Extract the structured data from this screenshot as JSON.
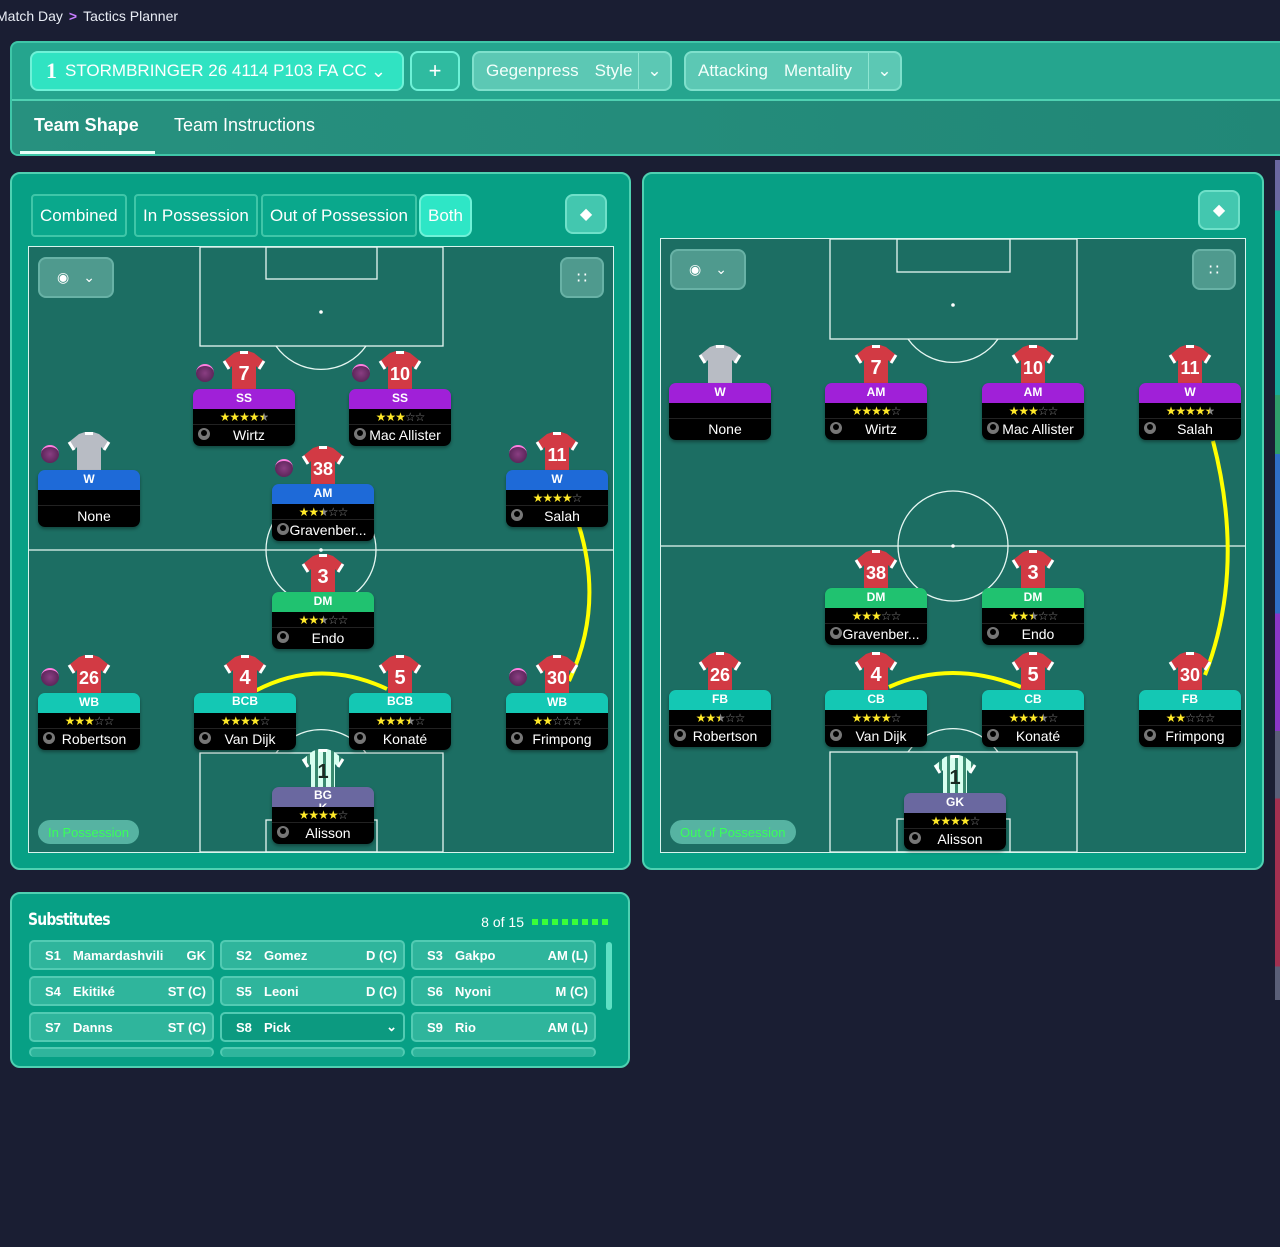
{
  "breadcrumb": {
    "items": [
      "Match Day",
      "Tactics Planner"
    ],
    "separator": ">"
  },
  "header": {
    "tactic": {
      "slot": "1",
      "name": "STORMBRINGER 26 4114 P103 FA CC"
    },
    "add_label": "+",
    "style": {
      "value": "Gegenpress",
      "label": "Style"
    },
    "mentality": {
      "value": "Attacking",
      "label": "Mentality"
    },
    "tabs": [
      {
        "label": "Team Shape",
        "active": true
      },
      {
        "label": "Team Instructions",
        "active": false
      }
    ]
  },
  "view_modes": {
    "options": [
      "Combined",
      "In Possession",
      "Out of Possession",
      "Both"
    ],
    "selected": "Both"
  },
  "colors": {
    "accent": "#2ee6c6",
    "panel": "#07a085",
    "pitch": "#1c6e63",
    "background": "#1a1e33",
    "link_line": "#ffff00",
    "stars": "#ffe928"
  },
  "pitches": [
    {
      "phase_label": "In Possession",
      "players": [
        {
          "role": "SS",
          "rating": 4.5,
          "name": "Wirtz",
          "number": "7",
          "role_color": "#a020d8",
          "kit": "home",
          "orb": true
        },
        {
          "role": "SS",
          "rating": 3,
          "name": "Mac Allister",
          "number": "10",
          "role_color": "#a020d8",
          "kit": "home",
          "orb": true
        },
        {
          "role": "W",
          "rating": 0,
          "name": "None",
          "number": "",
          "role_color": "#1e6ad8",
          "kit": "empty",
          "orb": true
        },
        {
          "role": "AM",
          "rating": 2.5,
          "name": "Gravenber...",
          "number": "38",
          "role_color": "#1e6ad8",
          "kit": "home",
          "orb": true
        },
        {
          "role": "W",
          "rating": 4,
          "name": "Salah",
          "number": "11",
          "role_color": "#1e6ad8",
          "kit": "home",
          "orb": true
        },
        {
          "role": "DM",
          "rating": 2.5,
          "name": "Endo",
          "number": "3",
          "role_color": "#20c270",
          "kit": "home",
          "orb": false
        },
        {
          "role": "WB",
          "rating": 3,
          "name": "Robertson",
          "number": "26",
          "role_color": "#14c8b4",
          "kit": "home",
          "orb": true
        },
        {
          "role": "BCB",
          "rating": 4,
          "name": "Van Dijk",
          "number": "4",
          "role_color": "#14c8b4",
          "kit": "home",
          "orb": false
        },
        {
          "role": "BCB",
          "rating": 3.5,
          "name": "Konaté",
          "number": "5",
          "role_color": "#14c8b4",
          "kit": "home",
          "orb": false
        },
        {
          "role": "WB",
          "rating": 2,
          "name": "Frimpong",
          "number": "30",
          "role_color": "#14c8b4",
          "kit": "home",
          "orb": true
        },
        {
          "role": "BGK",
          "rating": 4,
          "name": "Alisson",
          "number": "1",
          "role_color": "#6a68a0",
          "kit": "gk",
          "orb": false
        }
      ]
    },
    {
      "phase_label": "Out of Possession",
      "players": [
        {
          "role": "W",
          "rating": 0,
          "name": "None",
          "number": "",
          "role_color": "#a020d8",
          "kit": "empty",
          "orb": false
        },
        {
          "role": "AM",
          "rating": 4,
          "name": "Wirtz",
          "number": "7",
          "role_color": "#a020d8",
          "kit": "home",
          "orb": false
        },
        {
          "role": "AM",
          "rating": 3,
          "name": "Mac Allister",
          "number": "10",
          "role_color": "#a020d8",
          "kit": "home",
          "orb": false
        },
        {
          "role": "W",
          "rating": 4.5,
          "name": "Salah",
          "number": "11",
          "role_color": "#a020d8",
          "kit": "home",
          "orb": false
        },
        {
          "role": "DM",
          "rating": 3,
          "name": "Gravenber...",
          "number": "38",
          "role_color": "#20c270",
          "kit": "home",
          "orb": false
        },
        {
          "role": "DM",
          "rating": 2.5,
          "name": "Endo",
          "number": "3",
          "role_color": "#20c270",
          "kit": "home",
          "orb": false
        },
        {
          "role": "FB",
          "rating": 2.5,
          "name": "Robertson",
          "number": "26",
          "role_color": "#14c8b4",
          "kit": "home",
          "orb": false
        },
        {
          "role": "CB",
          "rating": 4,
          "name": "Van Dijk",
          "number": "4",
          "role_color": "#14c8b4",
          "kit": "home",
          "orb": false
        },
        {
          "role": "CB",
          "rating": 3.5,
          "name": "Konaté",
          "number": "5",
          "role_color": "#14c8b4",
          "kit": "home",
          "orb": false
        },
        {
          "role": "FB",
          "rating": 2,
          "name": "Frimpong",
          "number": "30",
          "role_color": "#14c8b4",
          "kit": "home",
          "orb": false
        },
        {
          "role": "GK",
          "rating": 4,
          "name": "Alisson",
          "number": "1",
          "role_color": "#6a68a0",
          "kit": "gk",
          "orb": false
        }
      ]
    }
  ],
  "substitutes": {
    "title": "Substitutes",
    "count_label": "8 of 15",
    "filled": 8,
    "items": [
      {
        "slot": "S1",
        "name": "Mamardashvili",
        "pos": "GK"
      },
      {
        "slot": "S2",
        "name": "Gomez",
        "pos": "D (C)"
      },
      {
        "slot": "S3",
        "name": "Gakpo",
        "pos": "AM (L)"
      },
      {
        "slot": "S4",
        "name": "Ekitiké",
        "pos": "ST (C)"
      },
      {
        "slot": "S5",
        "name": "Leoni",
        "pos": "D (C)"
      },
      {
        "slot": "S6",
        "name": "Nyoni",
        "pos": "M (C)"
      },
      {
        "slot": "S7",
        "name": "Danns",
        "pos": "ST (C)"
      },
      {
        "slot": "S8",
        "name": "Pick",
        "pos": "",
        "dropdown": true
      },
      {
        "slot": "S9",
        "name": "Rio",
        "pos": "AM (L)"
      }
    ]
  },
  "icons": {
    "eye": "eye-icon",
    "chevron": "chevron-down-icon",
    "grid": "grid-icon",
    "diamond": "diamond-icon",
    "person": "person-icon",
    "orb": "instruction-orb-icon"
  }
}
